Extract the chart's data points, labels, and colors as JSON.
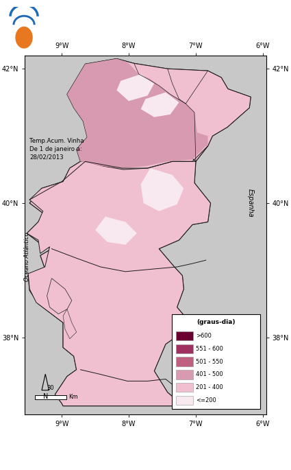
{
  "title_line1": "Temp.Acum. Vinha",
  "title_line2": "De 1 de janeiro a:",
  "title_line3": "28/02/2013",
  "legend_title": "(graus-dia)",
  "legend_labels": [
    ">600",
    "551 - 600",
    "501 - 550",
    "401 - 500",
    "201 - 400",
    "<=200"
  ],
  "legend_colors": [
    "#6b0030",
    "#a03060",
    "#c06080",
    "#d89ab0",
    "#f0c0d0",
    "#f8e8f0"
  ],
  "bg_color": "#c8c8c8",
  "border_color": "#1a1a1a",
  "xlim": [
    -9.55,
    -5.95
  ],
  "ylim": [
    36.85,
    42.2
  ],
  "logo_color1": "#1e6bb8",
  "logo_color2": "#e87820",
  "ylabel_left": "Oceano Atlântico",
  "ylabel_right": "Espanha",
  "scale_label": "30",
  "scale_km": "Km",
  "north": "N",
  "xticks": [
    -9,
    -8,
    -7,
    -6
  ],
  "xtick_labels": [
    "9°W",
    "8°W",
    "7°W",
    "6°W"
  ],
  "yticks": [
    38,
    40,
    42
  ],
  "ytick_labels": [
    "38°N",
    "40°N",
    "42°N"
  ]
}
